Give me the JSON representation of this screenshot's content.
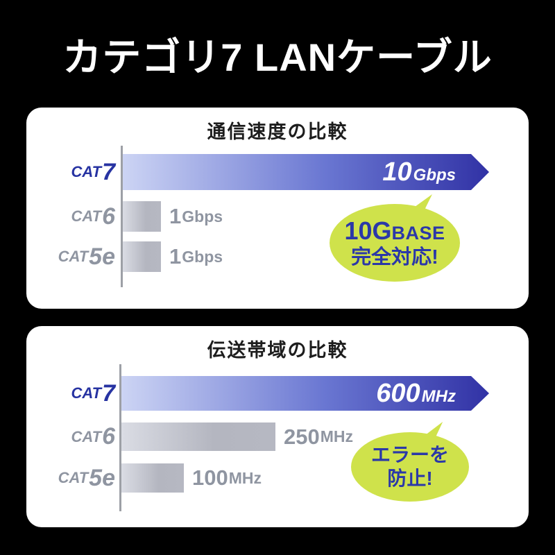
{
  "header": {
    "title": "カテゴリ7 LANケーブル"
  },
  "colors": {
    "background": "#000000",
    "panel": "#ffffff",
    "bar_blue_start": "#ccd4f4",
    "bar_blue_end": "#3132a5",
    "bar_gray_start": "#dadce4",
    "bar_gray_end": "#b6b8c2",
    "cat7_label": "#2733a2",
    "gray_label": "#8f95a1",
    "bubble_green": "#cfe24b",
    "bubble_text": "#2b38a8",
    "bar_value_text": "#ffffff"
  },
  "panels": [
    {
      "title": "通信速度の比較",
      "rows": [
        {
          "label_prefix": "CAT",
          "label_num": "7",
          "value_num": "10",
          "value_unit": "Gbps"
        },
        {
          "label_prefix": "CAT",
          "label_num": "6",
          "value_num": "1",
          "value_unit": "Gbps"
        },
        {
          "label_prefix": "CAT",
          "label_num": "5e",
          "value_num": "1",
          "value_unit": "Gbps"
        }
      ],
      "bubble": {
        "l1a": "10G",
        "l1b": "BASE",
        "l2": "完全対応!"
      }
    },
    {
      "title": "伝送帯域の比較",
      "rows": [
        {
          "label_prefix": "CAT",
          "label_num": "7",
          "value_num": "600",
          "value_unit": "MHz"
        },
        {
          "label_prefix": "CAT",
          "label_num": "6",
          "value_num": "250",
          "value_unit": "MHz"
        },
        {
          "label_prefix": "CAT",
          "label_num": "5e",
          "value_num": "100",
          "value_unit": "MHz"
        }
      ],
      "bubble": {
        "l1a": "エラーを",
        "l1b": "",
        "l2": "防止!"
      }
    }
  ],
  "chart_data": [
    {
      "type": "bar",
      "orientation": "horizontal",
      "title": "通信速度の比較",
      "categories": [
        "CAT7",
        "CAT6",
        "CAT5e"
      ],
      "values": [
        10,
        1,
        1
      ],
      "unit": "Gbps",
      "data_labels": [
        "10Gbps",
        "1Gbps",
        "1Gbps"
      ],
      "xlim": [
        0,
        10
      ],
      "grid": false,
      "legend": false,
      "highlight_category": "CAT7",
      "annotation": "10GBASE 完全対応!"
    },
    {
      "type": "bar",
      "orientation": "horizontal",
      "title": "伝送帯域の比較",
      "categories": [
        "CAT7",
        "CAT6",
        "CAT5e"
      ],
      "values": [
        600,
        250,
        100
      ],
      "unit": "MHz",
      "data_labels": [
        "600MHz",
        "250MHz",
        "100MHz"
      ],
      "xlim": [
        0,
        600
      ],
      "grid": false,
      "legend": false,
      "highlight_category": "CAT7",
      "annotation": "エラーを 防止!"
    }
  ]
}
